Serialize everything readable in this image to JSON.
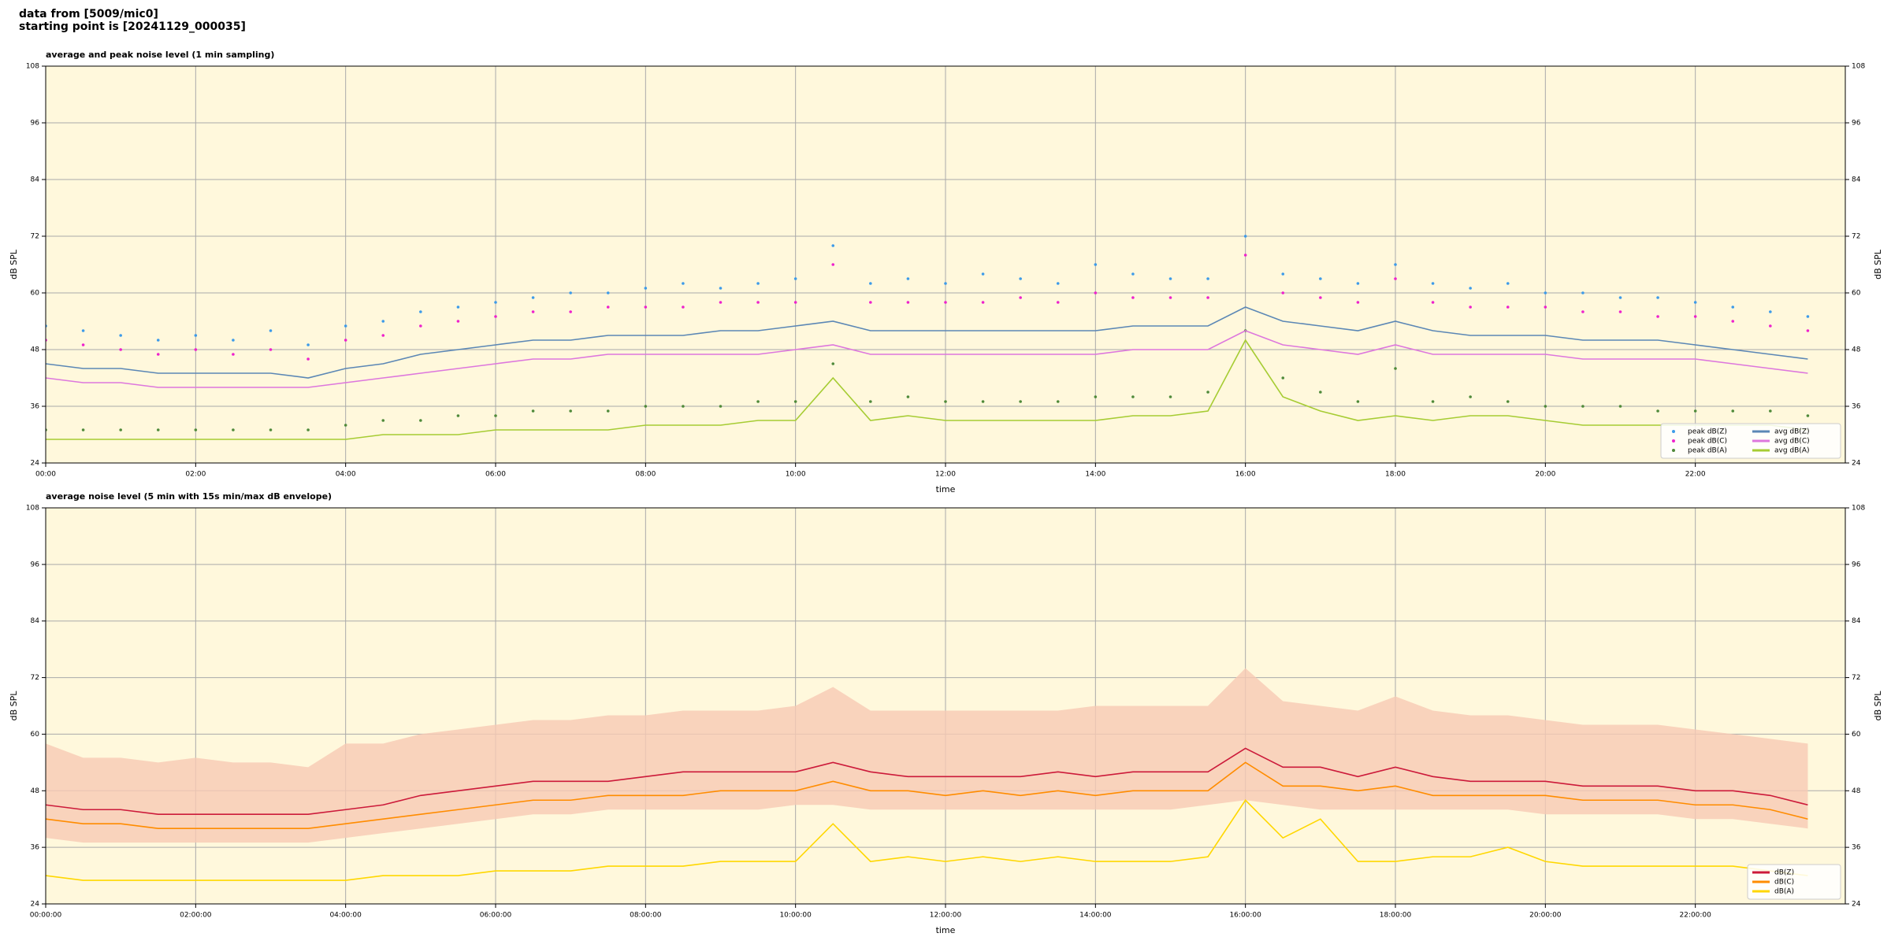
{
  "header": {
    "line1": "data from [5009/mic0]",
    "line2": "starting point is [20241129_000035]"
  },
  "chart_data": [
    {
      "type": "line",
      "title": "average and peak noise level (1 min sampling)",
      "xlabel": "time",
      "ylabel": "dB SPL",
      "grid": true,
      "legend": "lower right",
      "legend_columns": 2,
      "background": "#fff8dc",
      "xlim": [
        0,
        24
      ],
      "ylim": [
        24,
        108
      ],
      "yticks": [
        24,
        36,
        48,
        60,
        72,
        84,
        96,
        108
      ],
      "xticks": [
        {
          "value": 0,
          "label": "00:00"
        },
        {
          "value": 2,
          "label": "02:00"
        },
        {
          "value": 4,
          "label": "04:00"
        },
        {
          "value": 6,
          "label": "06:00"
        },
        {
          "value": 8,
          "label": "08:00"
        },
        {
          "value": 10,
          "label": "10:00"
        },
        {
          "value": 12,
          "label": "12:00"
        },
        {
          "value": 14,
          "label": "14:00"
        },
        {
          "value": 16,
          "label": "16:00"
        },
        {
          "value": 18,
          "label": "18:00"
        },
        {
          "value": 20,
          "label": "20:00"
        },
        {
          "value": 22,
          "label": "22:00"
        }
      ],
      "x": [
        0,
        0.5,
        1,
        1.5,
        2,
        2.5,
        3,
        3.5,
        4,
        4.5,
        5,
        5.5,
        6,
        6.5,
        7,
        7.5,
        8,
        8.5,
        9,
        9.5,
        10,
        10.5,
        11,
        11.5,
        12,
        12.5,
        13,
        13.5,
        14,
        14.5,
        15,
        15.5,
        16,
        16.5,
        17,
        17.5,
        18,
        18.5,
        19,
        19.5,
        20,
        20.5,
        21,
        21.5,
        22,
        22.5,
        23,
        23.5
      ],
      "series": [
        {
          "name": "peak dB(Z)",
          "kind": "points",
          "color": "#3d9be9",
          "values": [
            53,
            52,
            51,
            50,
            51,
            50,
            52,
            49,
            53,
            54,
            56,
            57,
            58,
            59,
            60,
            60,
            61,
            62,
            61,
            62,
            63,
            70,
            62,
            63,
            62,
            64,
            63,
            62,
            66,
            64,
            63,
            63,
            72,
            64,
            63,
            62,
            66,
            62,
            61,
            62,
            60,
            60,
            59,
            59,
            58,
            57,
            56,
            55
          ]
        },
        {
          "name": "peak dB(C)",
          "kind": "points",
          "color": "#ee22cc",
          "values": [
            50,
            49,
            48,
            47,
            48,
            47,
            48,
            46,
            50,
            51,
            53,
            54,
            55,
            56,
            56,
            57,
            57,
            57,
            58,
            58,
            58,
            66,
            58,
            58,
            58,
            58,
            59,
            58,
            60,
            59,
            59,
            59,
            68,
            60,
            59,
            58,
            63,
            58,
            57,
            57,
            57,
            56,
            56,
            55,
            55,
            54,
            53,
            52
          ]
        },
        {
          "name": "peak dB(A)",
          "kind": "points",
          "color": "#4f8a3a",
          "values": [
            31,
            31,
            31,
            31,
            31,
            31,
            31,
            31,
            32,
            33,
            33,
            34,
            34,
            35,
            35,
            35,
            36,
            36,
            36,
            37,
            37,
            45,
            37,
            38,
            37,
            37,
            37,
            37,
            38,
            38,
            38,
            39,
            52,
            42,
            39,
            37,
            44,
            37,
            38,
            37,
            36,
            36,
            36,
            35,
            35,
            35,
            35,
            34
          ]
        },
        {
          "name": "avg dB(Z)",
          "kind": "line",
          "color": "#5b87b5",
          "values": [
            45,
            44,
            44,
            43,
            43,
            43,
            43,
            42,
            44,
            45,
            47,
            48,
            49,
            50,
            50,
            51,
            51,
            51,
            52,
            52,
            53,
            54,
            52,
            52,
            52,
            52,
            52,
            52,
            52,
            53,
            53,
            53,
            57,
            54,
            53,
            52,
            54,
            52,
            51,
            51,
            51,
            50,
            50,
            50,
            49,
            48,
            47,
            46
          ]
        },
        {
          "name": "avg dB(C)",
          "kind": "line",
          "color": "#dd77dd",
          "values": [
            42,
            41,
            41,
            40,
            40,
            40,
            40,
            40,
            41,
            42,
            43,
            44,
            45,
            46,
            46,
            47,
            47,
            47,
            47,
            47,
            48,
            49,
            47,
            47,
            47,
            47,
            47,
            47,
            47,
            48,
            48,
            48,
            52,
            49,
            48,
            47,
            49,
            47,
            47,
            47,
            47,
            46,
            46,
            46,
            46,
            45,
            44,
            43
          ]
        },
        {
          "name": "avg dB(A)",
          "kind": "line",
          "color": "#a6cc33",
          "values": [
            29,
            29,
            29,
            29,
            29,
            29,
            29,
            29,
            29,
            30,
            30,
            30,
            31,
            31,
            31,
            31,
            32,
            32,
            32,
            33,
            33,
            42,
            33,
            34,
            33,
            33,
            33,
            33,
            33,
            34,
            34,
            35,
            50,
            38,
            35,
            33,
            34,
            33,
            34,
            34,
            33,
            32,
            32,
            32,
            32,
            32,
            32,
            31
          ]
        }
      ]
    },
    {
      "type": "line",
      "title": "average noise level (5 min with 15s min/max dB envelope)",
      "xlabel": "time",
      "ylabel": "dB SPL",
      "grid": true,
      "legend": "lower right",
      "legend_columns": 1,
      "background": "#fff8dc",
      "xlim": [
        0,
        24
      ],
      "ylim": [
        24,
        108
      ],
      "yticks": [
        24,
        36,
        48,
        60,
        72,
        84,
        96,
        108
      ],
      "xticks": [
        {
          "value": 0,
          "label": "00:00:00"
        },
        {
          "value": 2,
          "label": "02:00:00"
        },
        {
          "value": 4,
          "label": "04:00:00"
        },
        {
          "value": 6,
          "label": "06:00:00"
        },
        {
          "value": 8,
          "label": "08:00:00"
        },
        {
          "value": 10,
          "label": "10:00:00"
        },
        {
          "value": 12,
          "label": "12:00:00"
        },
        {
          "value": 14,
          "label": "14:00:00"
        },
        {
          "value": 16,
          "label": "16:00:00"
        },
        {
          "value": 18,
          "label": "18:00:00"
        },
        {
          "value": 20,
          "label": "20:00:00"
        },
        {
          "value": 22,
          "label": "22:00:00"
        }
      ],
      "x": [
        0,
        0.5,
        1,
        1.5,
        2,
        2.5,
        3,
        3.5,
        4,
        4.5,
        5,
        5.5,
        6,
        6.5,
        7,
        7.5,
        8,
        8.5,
        9,
        9.5,
        10,
        10.5,
        11,
        11.5,
        12,
        12.5,
        13,
        13.5,
        14,
        14.5,
        15,
        15.5,
        16,
        16.5,
        17,
        17.5,
        18,
        18.5,
        19,
        19.5,
        20,
        20.5,
        21,
        21.5,
        22,
        22.5,
        23,
        23.5
      ],
      "envelope": {
        "color": "#f7c9b4",
        "upper": [
          58,
          55,
          55,
          54,
          55,
          54,
          54,
          53,
          58,
          58,
          60,
          61,
          62,
          63,
          63,
          64,
          64,
          65,
          65,
          65,
          66,
          70,
          65,
          65,
          65,
          65,
          65,
          65,
          66,
          66,
          66,
          66,
          74,
          67,
          66,
          65,
          68,
          65,
          64,
          64,
          63,
          62,
          62,
          62,
          61,
          60,
          59,
          58
        ],
        "lower": [
          38,
          37,
          37,
          37,
          37,
          37,
          37,
          37,
          38,
          39,
          40,
          41,
          42,
          43,
          43,
          44,
          44,
          44,
          44,
          44,
          45,
          45,
          44,
          44,
          44,
          44,
          44,
          44,
          44,
          44,
          44,
          45,
          46,
          45,
          44,
          44,
          44,
          44,
          44,
          44,
          43,
          43,
          43,
          43,
          42,
          42,
          41,
          40
        ]
      },
      "series": [
        {
          "name": "dB(Z)",
          "kind": "line",
          "color": "#cc1a3a",
          "values": [
            45,
            44,
            44,
            43,
            43,
            43,
            43,
            43,
            44,
            45,
            47,
            48,
            49,
            50,
            50,
            50,
            51,
            52,
            52,
            52,
            52,
            54,
            52,
            51,
            51,
            51,
            51,
            52,
            51,
            52,
            52,
            52,
            57,
            53,
            53,
            51,
            53,
            51,
            50,
            50,
            50,
            49,
            49,
            49,
            48,
            48,
            47,
            45
          ]
        },
        {
          "name": "dB(C)",
          "kind": "line",
          "color": "#ff8c00",
          "values": [
            42,
            41,
            41,
            40,
            40,
            40,
            40,
            40,
            41,
            42,
            43,
            44,
            45,
            46,
            46,
            47,
            47,
            47,
            48,
            48,
            48,
            50,
            48,
            48,
            47,
            48,
            47,
            48,
            47,
            48,
            48,
            48,
            54,
            49,
            49,
            48,
            49,
            47,
            47,
            47,
            47,
            46,
            46,
            46,
            45,
            45,
            44,
            42
          ]
        },
        {
          "name": "dB(A)",
          "kind": "line",
          "color": "#ffd700",
          "values": [
            30,
            29,
            29,
            29,
            29,
            29,
            29,
            29,
            29,
            30,
            30,
            30,
            31,
            31,
            31,
            32,
            32,
            32,
            33,
            33,
            33,
            41,
            33,
            34,
            33,
            34,
            33,
            34,
            33,
            33,
            33,
            34,
            46,
            38,
            42,
            33,
            33,
            34,
            34,
            36,
            33,
            32,
            32,
            32,
            32,
            32,
            31,
            30
          ]
        }
      ]
    }
  ]
}
